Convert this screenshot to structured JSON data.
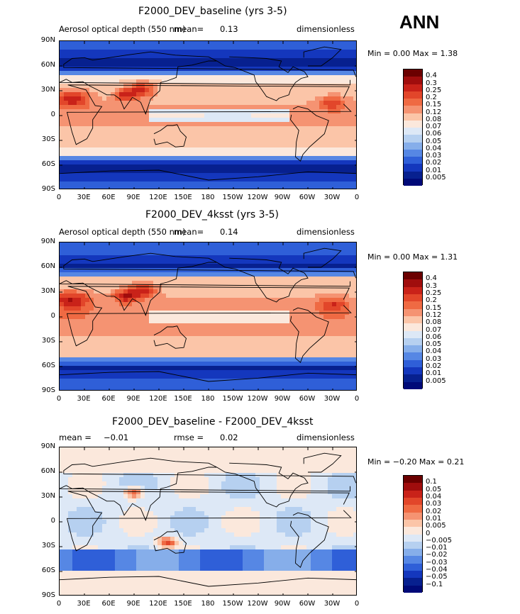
{
  "season": "ANN",
  "panels": [
    {
      "title": "F2000_DEV_baseline (yrs 3-5)",
      "left": "Aerosol optical depth (550 nm)",
      "mean": "mean=",
      "mean_val": "0.13",
      "rmse": "",
      "rmse_val": "",
      "units": "dimensionless",
      "minmax": "Min =    0.00 Max =    1.38",
      "levels": [
        "0.4",
        "0.3",
        "0.25",
        "0.2",
        "0.15",
        "0.12",
        "0.08",
        "0.07",
        "0.06",
        "0.05",
        "0.04",
        "0.03",
        "0.02",
        "0.01",
        "0.005"
      ]
    },
    {
      "title": "F2000_DEV_4ksst (yrs 3-5)",
      "left": "Aerosol optical depth (550 nm)",
      "mean": "mean=",
      "mean_val": "0.14",
      "rmse": "",
      "rmse_val": "",
      "units": "dimensionless",
      "minmax": "Min =    0.00 Max =    1.31",
      "levels": [
        "0.4",
        "0.3",
        "0.25",
        "0.2",
        "0.15",
        "0.12",
        "0.08",
        "0.07",
        "0.06",
        "0.05",
        "0.04",
        "0.03",
        "0.02",
        "0.01",
        "0.005"
      ]
    },
    {
      "title": "F2000_DEV_baseline - F2000_DEV_4ksst",
      "left": "",
      "mean": "mean =",
      "mean_val": "−0.01",
      "rmse": "rmse =",
      "rmse_val": "0.02",
      "units": "dimensionless",
      "minmax": "Min =   −0.20 Max =    0.21",
      "levels": [
        "0.1",
        "0.05",
        "0.04",
        "0.03",
        "0.02",
        "0.01",
        "0.005",
        "0",
        "−0.005",
        "−0.01",
        "−0.02",
        "−0.03",
        "−0.04",
        "−0.05",
        "−0.1"
      ]
    }
  ],
  "lat_ticks": [
    "90N",
    "60N",
    "30N",
    "0",
    "30S",
    "60S",
    "90S"
  ],
  "lon_ticks": [
    "0",
    "30E",
    "60E",
    "90E",
    "120E",
    "150E",
    "180",
    "150W",
    "120W",
    "90W",
    "60W",
    "30W",
    "0"
  ],
  "colors": {
    "abs_scale": [
      "#6b0000",
      "#a00d0d",
      "#c92219",
      "#e2462a",
      "#ef6a43",
      "#f59372",
      "#fbc5a8",
      "#fbe8dc",
      "#dde8f6",
      "#b6d0f0",
      "#86aeea",
      "#5687e4",
      "#2f5fd8",
      "#1437bd",
      "#07208f",
      "#000a78"
    ],
    "diff_scale": [
      "#6b0000",
      "#a00d0d",
      "#c92219",
      "#e2462a",
      "#ef6a43",
      "#f59372",
      "#fbc5a8",
      "#fbe8dc",
      "#dde8f6",
      "#b6d0f0",
      "#86aeea",
      "#5687e4",
      "#2f5fd8",
      "#1437bd",
      "#07208f",
      "#000a78"
    ]
  }
}
